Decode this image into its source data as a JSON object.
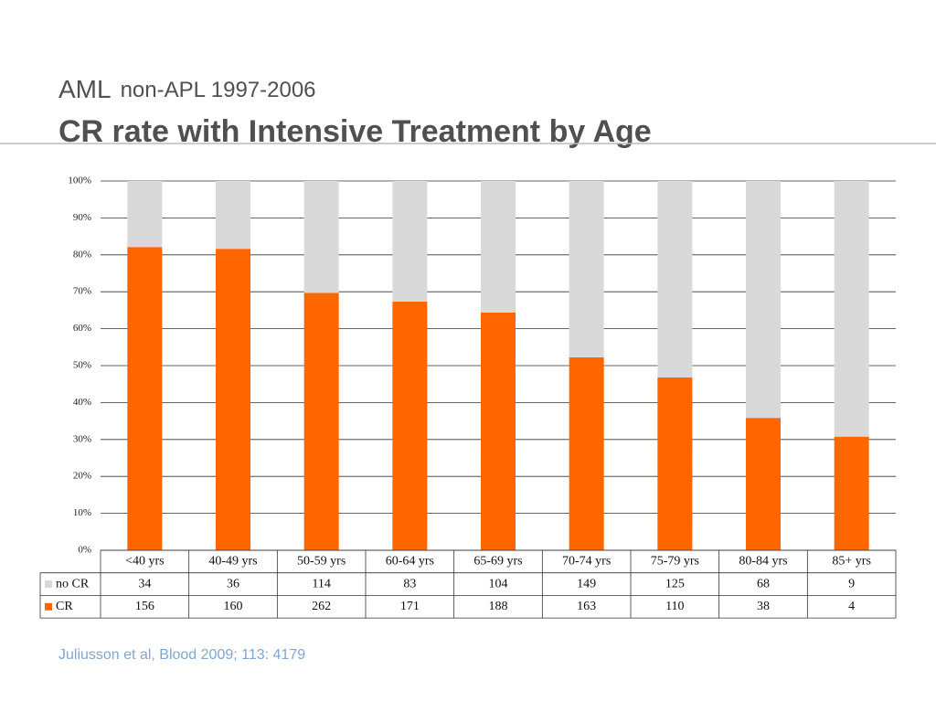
{
  "slide": {
    "heading": "AML",
    "heading_detail": "non-APL 1997-2006",
    "footnote": "Juliusson et al, Blood 2009; 113: 4179"
  },
  "chart_data": {
    "type": "bar",
    "stacking": "percent",
    "title": "CR rate with Intensive Treatment by Age",
    "categories": [
      "<40 yrs",
      "40-49 yrs",
      "50-59 yrs",
      "60-64 yrs",
      "65-69 yrs",
      "70-74 yrs",
      "75-79 yrs",
      "80-84 yrs",
      "85+ yrs"
    ],
    "series": [
      {
        "name": "no CR",
        "color": "#d9d9d9",
        "values": [
          34,
          36,
          114,
          83,
          104,
          149,
          125,
          68,
          9
        ]
      },
      {
        "name": "CR",
        "color": "#ff6600",
        "values": [
          156,
          160,
          262,
          171,
          188,
          163,
          110,
          38,
          4
        ]
      }
    ],
    "ylim": [
      0,
      100
    ],
    "yticks": [
      {
        "value": 0,
        "label": "0%"
      },
      {
        "value": 10,
        "label": "10%"
      },
      {
        "value": 20,
        "label": "20%"
      },
      {
        "value": 30,
        "label": "30%"
      },
      {
        "value": 40,
        "label": "40%"
      },
      {
        "value": 50,
        "label": "50%"
      },
      {
        "value": 60,
        "label": "60%"
      },
      {
        "value": 70,
        "label": "70%"
      },
      {
        "value": 80,
        "label": "80%"
      },
      {
        "value": 90,
        "label": "90%"
      },
      {
        "value": 100,
        "label": "100%"
      }
    ],
    "grid": true
  }
}
